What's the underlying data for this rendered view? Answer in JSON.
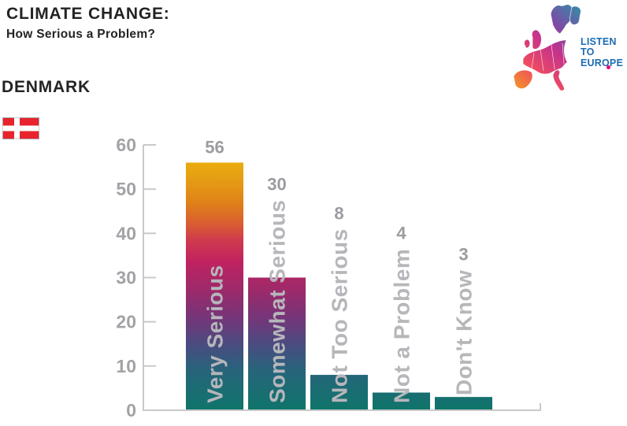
{
  "header": {
    "title": "CLIMATE CHANGE:",
    "subtitle": "How Serious a Problem?",
    "country": "DENMARK"
  },
  "logo": {
    "lines": [
      "LISTEN",
      "TO",
      "EUROPE"
    ],
    "text_color": "#1b6cb1",
    "dot_color": "#e6007e"
  },
  "flag": {
    "country": "Denmark",
    "field_color": "#e8232e",
    "cross_color": "#ffffff",
    "border_color": "#a6a6a6"
  },
  "chart_data": {
    "type": "bar",
    "title": "CLIMATE CHANGE: How Serious a Problem? — DENMARK",
    "categories": [
      "Very Serious",
      "Somewhat Serious",
      "Not Too Serious",
      "Not a Problem",
      "Don't Know"
    ],
    "values": [
      56,
      30,
      8,
      4,
      3
    ],
    "yticks": [
      0,
      10,
      20,
      30,
      40,
      50,
      60
    ],
    "ylim": [
      0,
      60
    ],
    "xlabel": "",
    "ylabel": "",
    "grid": false,
    "legend": false,
    "colors": {
      "axis": "#c9c9c9",
      "tick_label": "#a2a2a7",
      "value_label": "#9b9ba0",
      "category_outside": "#b6b6bb",
      "category_inside": "#f2f0f2",
      "bar_gradient": [
        {
          "offset": 0.0,
          "color": "#eebc07"
        },
        {
          "offset": 0.12,
          "color": "#e6a013"
        },
        {
          "offset": 0.22,
          "color": "#df8119"
        },
        {
          "offset": 0.3,
          "color": "#d95b33"
        },
        {
          "offset": 0.36,
          "color": "#d03a4e"
        },
        {
          "offset": 0.44,
          "color": "#c02260"
        },
        {
          "offset": 0.55,
          "color": "#9c2a6a"
        },
        {
          "offset": 0.65,
          "color": "#763579"
        },
        {
          "offset": 0.75,
          "color": "#4b4b80"
        },
        {
          "offset": 0.85,
          "color": "#27647b"
        },
        {
          "offset": 1.0,
          "color": "#0e756a"
        }
      ]
    },
    "map_gradient": [
      {
        "offset": 0.0,
        "color": "#f6a21c"
      },
      {
        "offset": 0.28,
        "color": "#ec4a63"
      },
      {
        "offset": 0.5,
        "color": "#c6338b"
      },
      {
        "offset": 0.68,
        "color": "#7d4aa5"
      },
      {
        "offset": 1.0,
        "color": "#1ba3a8"
      }
    ]
  }
}
